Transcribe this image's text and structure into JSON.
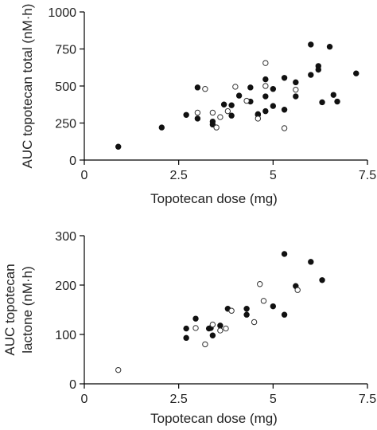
{
  "chart_data": [
    {
      "type": "scatter",
      "xlabel": "Topotecan dose (mg)",
      "ylabel": "AUC topotecan total (nM·h)",
      "xlim": [
        0,
        7.5
      ],
      "ylim": [
        0,
        1000
      ],
      "x_ticks": [
        0,
        2.5,
        5,
        7.5
      ],
      "y_ticks": [
        0,
        250,
        500,
        750,
        1000
      ],
      "x_tick_labels": [
        "0",
        "2.5",
        "5",
        "7.5"
      ],
      "y_tick_labels": [
        "0",
        "250",
        "500",
        "750",
        "1000"
      ],
      "grid": false,
      "series": [
        {
          "marker": "filled-circle",
          "points": [
            [
              0.9,
              90
            ],
            [
              2.05,
              220
            ],
            [
              2.7,
              305
            ],
            [
              3.0,
              490
            ],
            [
              3.0,
              280
            ],
            [
              3.4,
              260
            ],
            [
              3.4,
              240
            ],
            [
              3.7,
              375
            ],
            [
              3.9,
              370
            ],
            [
              3.9,
              300
            ],
            [
              4.1,
              435
            ],
            [
              4.4,
              395
            ],
            [
              4.4,
              490
            ],
            [
              4.6,
              310
            ],
            [
              4.6,
              305
            ],
            [
              4.8,
              545
            ],
            [
              4.8,
              430
            ],
            [
              4.8,
              330
            ],
            [
              5.0,
              480
            ],
            [
              5.0,
              365
            ],
            [
              5.3,
              555
            ],
            [
              5.3,
              340
            ],
            [
              5.6,
              525
            ],
            [
              5.6,
              430
            ],
            [
              6.0,
              780
            ],
            [
              6.0,
              575
            ],
            [
              6.2,
              635
            ],
            [
              6.2,
              610
            ],
            [
              6.3,
              390
            ],
            [
              6.5,
              765
            ],
            [
              6.6,
              440
            ],
            [
              6.7,
              395
            ],
            [
              7.2,
              585
            ]
          ]
        },
        {
          "marker": "open-circle",
          "points": [
            [
              3.0,
              320
            ],
            [
              3.2,
              480
            ],
            [
              3.4,
              320
            ],
            [
              3.5,
              220
            ],
            [
              3.6,
              290
            ],
            [
              3.8,
              330
            ],
            [
              4.0,
              495
            ],
            [
              4.3,
              400
            ],
            [
              4.6,
              280
            ],
            [
              4.8,
              655
            ],
            [
              4.8,
              500
            ],
            [
              5.3,
              215
            ],
            [
              5.6,
              475
            ]
          ]
        }
      ]
    },
    {
      "type": "scatter",
      "xlabel": "Topotecan dose (mg)",
      "ylabel_lines": [
        "AUC topotecan",
        "lactone (nM·h)"
      ],
      "xlim": [
        0,
        7.5
      ],
      "ylim": [
        0,
        300
      ],
      "x_ticks": [
        0,
        2.5,
        5,
        7.5
      ],
      "y_ticks": [
        0,
        100,
        200,
        300
      ],
      "x_tick_labels": [
        "0",
        "2.5",
        "5",
        "7.5"
      ],
      "y_tick_labels": [
        "0",
        "100",
        "200",
        "300"
      ],
      "grid": false,
      "series": [
        {
          "marker": "filled-circle",
          "points": [
            [
              2.7,
              112
            ],
            [
              2.7,
              93
            ],
            [
              2.95,
              132
            ],
            [
              3.3,
              112
            ],
            [
              3.35,
              113
            ],
            [
              3.4,
              98
            ],
            [
              3.6,
              118
            ],
            [
              3.8,
              152
            ],
            [
              4.3,
              152
            ],
            [
              4.3,
              140
            ],
            [
              5.0,
              157
            ],
            [
              5.3,
              263
            ],
            [
              5.3,
              140
            ],
            [
              5.6,
              198
            ],
            [
              6.0,
              247
            ],
            [
              6.3,
              210
            ]
          ]
        },
        {
          "marker": "open-circle",
          "points": [
            [
              0.9,
              28
            ],
            [
              2.95,
              113
            ],
            [
              3.2,
              80
            ],
            [
              3.4,
              120
            ],
            [
              3.6,
              108
            ],
            [
              3.75,
              112
            ],
            [
              3.9,
              148
            ],
            [
              4.5,
              125
            ],
            [
              4.65,
              202
            ],
            [
              4.75,
              168
            ],
            [
              5.65,
              190
            ]
          ]
        }
      ]
    }
  ]
}
